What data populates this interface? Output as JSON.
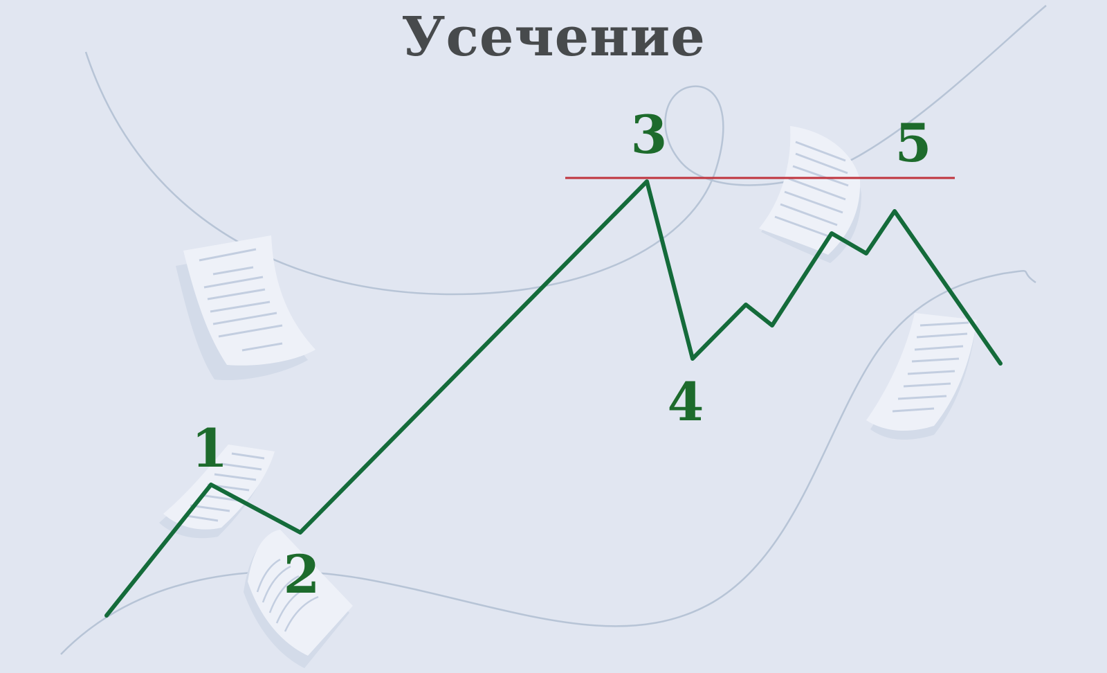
{
  "title": "Усечение",
  "colors": {
    "background": "#e1e6f1",
    "wave_line": "#146b3a",
    "label": "#1d6b2c",
    "level_line": "#c0343d",
    "decor_curve": "#b7c4d6",
    "paper": "#eef1f8",
    "paper_lines": "#c3cee0"
  },
  "waves": [
    {
      "label": "1"
    },
    {
      "label": "2"
    },
    {
      "label": "3"
    },
    {
      "label": "4"
    },
    {
      "label": "5"
    }
  ]
}
